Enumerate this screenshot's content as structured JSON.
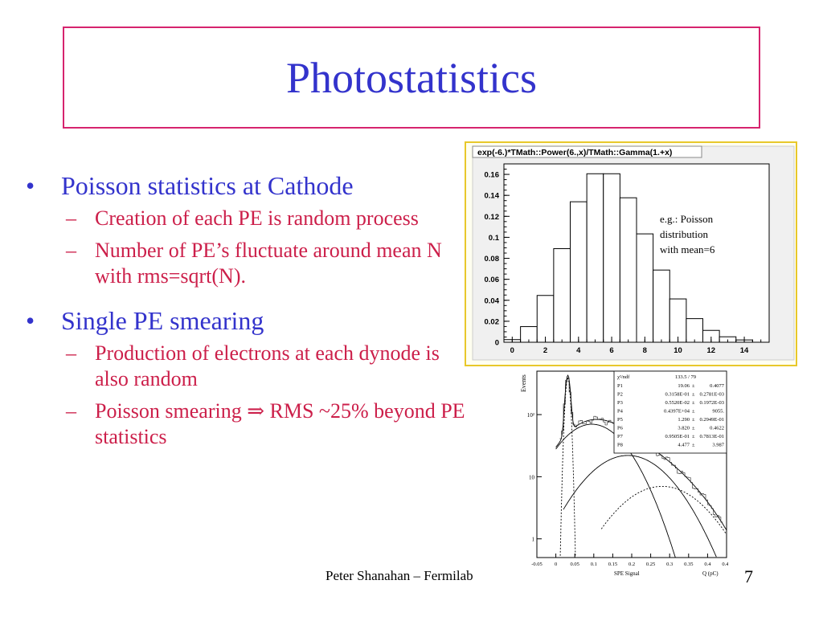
{
  "slide": {
    "title": "Photostatistics",
    "bullets": [
      {
        "text": "Poisson statistics at Cathode",
        "subs": [
          "Creation of each PE is random process",
          "Number of PE’s fluctuate around mean N with rms=sqrt(N)."
        ]
      },
      {
        "text": "Single PE smearing",
        "subs": [
          "Production of electrons at each dynode is also random",
          "Poisson smearing ⇒ RMS  ~25% beyond PE statistics"
        ]
      }
    ],
    "footer": "Peter Shanahan – Fermilab",
    "page_number": "7"
  },
  "chart_data": [
    {
      "type": "bar",
      "title": "exp(-6.)*TMath::Power(6.,x)/TMath::Gamma(1.+x)",
      "annotation": "e.g.: Poisson distribution with mean=6",
      "x": [
        0,
        1,
        2,
        3,
        4,
        5,
        6,
        7,
        8,
        9,
        10,
        11,
        12,
        13,
        14
      ],
      "values": [
        0.0025,
        0.0149,
        0.0446,
        0.0892,
        0.1339,
        0.1606,
        0.1606,
        0.1377,
        0.1033,
        0.0688,
        0.0413,
        0.0225,
        0.0113,
        0.0052,
        0.0022
      ],
      "xticks": [
        "0",
        "2",
        "4",
        "6",
        "8",
        "10",
        "12",
        "14"
      ],
      "yticks": [
        "0",
        "0.02",
        "0.04",
        "0.06",
        "0.08",
        "0.1",
        "0.12",
        "0.14",
        "0.16"
      ],
      "xlim": [
        -0.5,
        15.5
      ],
      "ylim": [
        0,
        0.17
      ],
      "grid": false,
      "colors": {
        "background": "#fffff0",
        "border": "#e8c82a",
        "frame": "#f0f0f0"
      }
    },
    {
      "type": "line",
      "xlabel": "SPE Signal",
      "xunit": "Q (pC)",
      "ylabel": "Events",
      "yscale": "log",
      "xticks": [
        "-0.05",
        "0",
        "0.05",
        "0.1",
        "0.15",
        "0.2",
        "0.25",
        "0.3",
        "0.35",
        "0.4",
        "0.45"
      ],
      "yticks": [
        "1",
        "10",
        "10²"
      ],
      "xlim": [
        -0.05,
        0.45
      ],
      "ylim": [
        0.5,
        500
      ],
      "stats": {
        "header": [
          "χ²/ndf",
          "133.5  /  79"
        ],
        "rows": [
          [
            "P1",
            "19.06",
            "±",
            "0.4077"
          ],
          [
            "P2",
            "0.3158E-01",
            "±",
            "0.2781E-03"
          ],
          [
            "P3",
            "0.5520E-02",
            "±",
            "0.1972E-03"
          ],
          [
            "P4",
            "0.4397E+04",
            "±",
            "9055."
          ],
          [
            "P5",
            "1.290",
            "±",
            "0.2949E-01"
          ],
          [
            "P6",
            "3.820",
            "±",
            "0.4622"
          ],
          [
            "P7",
            "0.9505E-01",
            "±",
            "0.7813E-01"
          ],
          [
            "P8",
            "4.477",
            "±",
            "3.987"
          ]
        ]
      }
    }
  ]
}
